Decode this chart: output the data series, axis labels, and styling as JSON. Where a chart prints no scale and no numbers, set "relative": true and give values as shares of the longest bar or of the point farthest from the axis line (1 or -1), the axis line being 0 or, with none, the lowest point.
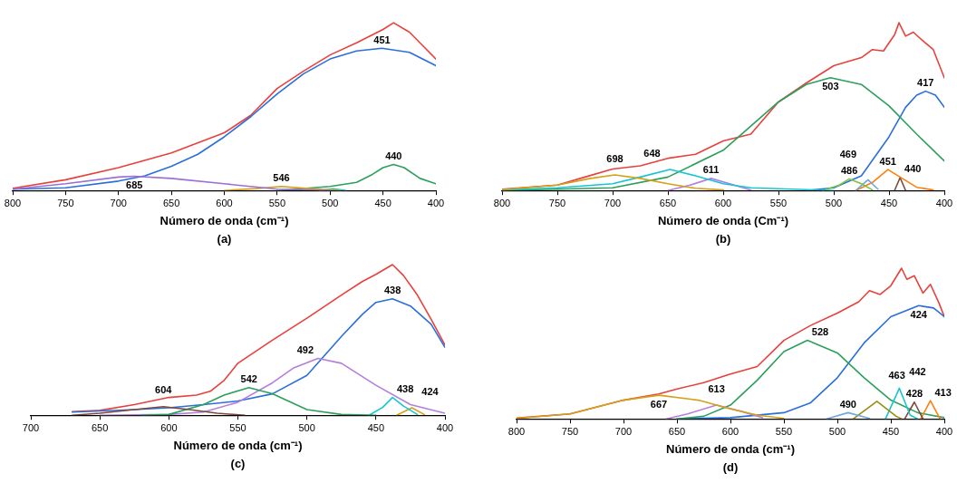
{
  "chart_data": [
    {
      "type": "line",
      "relative": true,
      "xlabel": "Número de onda (cm⁻¹)",
      "xlim": [
        800,
        400
      ],
      "xticks": [
        800,
        750,
        700,
        650,
        600,
        550,
        500,
        450,
        400
      ],
      "grid": false,
      "legend": false,
      "marker": "none",
      "line_style": "solid",
      "series": [
        {
          "color": "#9b6fd6",
          "x": [
            800,
            750,
            700,
            685,
            650,
            600,
            550,
            500
          ],
          "values": [
            0.008,
            0.04,
            0.08,
            0.085,
            0.072,
            0.04,
            0.008,
            0
          ]
        },
        {
          "color": "#d4a017",
          "x": [
            600,
            570,
            546,
            520,
            490
          ],
          "values": [
            0,
            0.011,
            0.024,
            0.011,
            0
          ]
        },
        {
          "color": "#17c5d0",
          "x": [
            510,
            497,
            485
          ],
          "values": [
            0,
            0.01,
            0
          ]
        },
        {
          "color": "#2ca05a",
          "x": [
            550,
            500,
            475,
            460,
            450,
            440,
            430,
            415,
            400
          ],
          "values": [
            0,
            0.024,
            0.048,
            0.096,
            0.136,
            0.155,
            0.136,
            0.072,
            0.04
          ]
        },
        {
          "color": "#2a6fdb",
          "x": [
            800,
            750,
            700,
            675,
            650,
            625,
            600,
            575,
            550,
            525,
            500,
            475,
            451,
            425,
            400
          ],
          "values": [
            0.008,
            0.016,
            0.056,
            0.088,
            0.144,
            0.216,
            0.32,
            0.44,
            0.576,
            0.696,
            0.784,
            0.832,
            0.848,
            0.824,
            0.744
          ]
        },
        {
          "color": "#e8413c",
          "x": [
            800,
            750,
            700,
            650,
            600,
            575,
            550,
            525,
            500,
            475,
            450,
            440,
            425,
            410,
            400
          ],
          "values": [
            0.013,
            0.064,
            0.136,
            0.224,
            0.344,
            0.448,
            0.608,
            0.712,
            0.808,
            0.88,
            0.96,
            1,
            0.944,
            0.848,
            0.784
          ]
        }
      ],
      "annotations": [
        {
          "text": "451",
          "x": 451,
          "y": 0.848
        },
        {
          "text": "685",
          "x": 685,
          "y": 0.085
        },
        {
          "text": "546",
          "x": 546,
          "y": 0.024
        },
        {
          "text": "440",
          "x": 440,
          "y": 0.155
        },
        "(a)"
      ]
    },
    {
      "type": "line",
      "relative": true,
      "xlabel": "Número de onda (Cm⁻¹)",
      "xlim": [
        800,
        400
      ],
      "xticks": [
        800,
        750,
        700,
        650,
        600,
        550,
        500,
        450,
        400
      ],
      "grid": false,
      "legend": false,
      "marker": "none",
      "line_style": "solid",
      "series": [
        {
          "color": "#d4a017",
          "x": [
            800,
            750,
            720,
            698,
            675,
            650,
            625,
            600
          ],
          "values": [
            0.005,
            0.032,
            0.072,
            0.093,
            0.072,
            0.04,
            0.013,
            0.003
          ]
        },
        {
          "color": "#17c5d0",
          "x": [
            800,
            750,
            700,
            675,
            648,
            625,
            600,
            575,
            525,
            500
          ],
          "values": [
            0.003,
            0.016,
            0.04,
            0.08,
            0.125,
            0.088,
            0.04,
            0.016,
            0.005,
            0
          ]
        },
        {
          "color": "#b57edc",
          "x": [
            650,
            630,
            611,
            590,
            575
          ],
          "values": [
            0,
            0.032,
            0.072,
            0.032,
            0.003
          ]
        },
        {
          "color": "#7cc242",
          "x": [
            510,
            495,
            486,
            475,
            465
          ],
          "values": [
            0,
            0.032,
            0.069,
            0.04,
            0.003
          ]
        },
        {
          "color": "#6fa8dc",
          "x": [
            480,
            469,
            460
          ],
          "values": [
            0,
            0.064,
            0.008
          ]
        },
        {
          "color": "#ff7f0e",
          "x": [
            480,
            465,
            451,
            440,
            425,
            410
          ],
          "values": [
            0,
            0.048,
            0.125,
            0.08,
            0.019,
            0.003
          ]
        },
        {
          "color": "#7b4a3a",
          "x": [
            445,
            440,
            435
          ],
          "values": [
            0,
            0.077,
            0
          ]
        },
        {
          "color": "#2ca05a",
          "x": [
            800,
            700,
            650,
            600,
            575,
            550,
            525,
            503,
            475,
            450,
            425,
            400
          ],
          "values": [
            0,
            0.016,
            0.08,
            0.24,
            0.384,
            0.528,
            0.632,
            0.672,
            0.632,
            0.504,
            0.336,
            0.176
          ]
        },
        {
          "color": "#2a6fdb",
          "x": [
            525,
            500,
            475,
            450,
            435,
            425,
            417,
            408,
            400
          ],
          "values": [
            0,
            0.016,
            0.088,
            0.32,
            0.496,
            0.568,
            0.592,
            0.568,
            0.496
          ]
        },
        {
          "color": "#e8413c",
          "x": [
            800,
            750,
            725,
            700,
            675,
            650,
            625,
            600,
            575,
            550,
            525,
            500,
            475,
            465,
            455,
            450,
            445,
            441,
            435,
            428,
            420,
            410,
            400
          ],
          "values": [
            0.008,
            0.032,
            0.08,
            0.128,
            0.147,
            0.192,
            0.216,
            0.296,
            0.336,
            0.528,
            0.64,
            0.744,
            0.792,
            0.84,
            0.832,
            0.88,
            0.928,
            1,
            0.92,
            0.944,
            0.896,
            0.84,
            0.672
          ]
        }
      ],
      "annotations": [
        {
          "text": "503",
          "x": 503,
          "y": 0.672
        },
        {
          "text": "417",
          "x": 417,
          "y": 0.592
        },
        {
          "text": "698",
          "x": 698,
          "y": 0.093
        },
        {
          "text": "648",
          "x": 648,
          "y": 0.125
        },
        {
          "text": "611",
          "x": 611,
          "y": 0.072
        },
        {
          "text": "486",
          "x": 486,
          "y": 0.069
        },
        {
          "text": "469",
          "x": 469,
          "y": 0.064
        },
        {
          "text": "451",
          "x": 451,
          "y": 0.125
        },
        {
          "text": "440",
          "x": 440,
          "y": 0.077
        },
        "(b)"
      ]
    },
    {
      "type": "line",
      "relative": true,
      "xlabel": "Número de onda (cm⁻¹)",
      "xlim": [
        700,
        400
      ],
      "xticks": [
        700,
        650,
        600,
        550,
        500,
        450,
        400
      ],
      "grid": false,
      "legend": false,
      "marker": "none",
      "line_style": "solid",
      "series": [
        {
          "color": "#7b4a3a",
          "x": [
            670,
            650,
            625,
            604,
            585,
            565,
            545
          ],
          "values": [
            0,
            0.013,
            0.037,
            0.057,
            0.037,
            0.013,
            0
          ]
        },
        {
          "color": "#2ca05a",
          "x": [
            620,
            600,
            575,
            560,
            542,
            525,
            500,
            475,
            450
          ],
          "values": [
            0,
            0.005,
            0.07,
            0.134,
            0.183,
            0.142,
            0.037,
            0.005,
            0
          ]
        },
        {
          "color": "#b57edc",
          "x": [
            650,
            600,
            575,
            550,
            525,
            510,
            492,
            475,
            450,
            425,
            400
          ],
          "values": [
            0,
            0.005,
            0.021,
            0.086,
            0.215,
            0.312,
            0.377,
            0.345,
            0.199,
            0.07,
            0.013
          ]
        },
        {
          "color": "#17c5d0",
          "x": [
            455,
            445,
            438,
            430,
            420
          ],
          "values": [
            0,
            0.053,
            0.118,
            0.061,
            0.005
          ]
        },
        {
          "color": "#d4a017",
          "x": [
            435,
            424,
            415
          ],
          "values": [
            0,
            0.049,
            0.005
          ]
        },
        {
          "color": "#2a6fdb",
          "x": [
            670,
            625,
            600,
            575,
            550,
            525,
            500,
            475,
            460,
            450,
            438,
            425,
            410,
            400
          ],
          "values": [
            0.021,
            0.037,
            0.049,
            0.07,
            0.094,
            0.142,
            0.264,
            0.523,
            0.668,
            0.749,
            0.773,
            0.725,
            0.604,
            0.45
          ]
        },
        {
          "color": "#e8413c",
          "x": [
            670,
            650,
            625,
            600,
            580,
            570,
            560,
            550,
            525,
            500,
            475,
            460,
            450,
            438,
            430,
            420,
            410,
            400
          ],
          "values": [
            0.024,
            0.032,
            0.07,
            0.118,
            0.134,
            0.159,
            0.231,
            0.345,
            0.498,
            0.644,
            0.798,
            0.887,
            0.935,
            1,
            0.927,
            0.798,
            0.636,
            0.466
          ]
        }
      ],
      "annotations": [
        {
          "text": "438",
          "x": 438,
          "y": 0.773
        },
        {
          "text": "492",
          "x": 492,
          "y": 0.377
        },
        {
          "text": "542",
          "x": 542,
          "y": 0.183
        },
        {
          "text": "604",
          "x": 604,
          "y": 0.057
        },
        {
          "text": "438",
          "x": 438,
          "y": 0.118
        },
        {
          "text": "424",
          "x": 424,
          "y": 0.049
        },
        "(c)"
      ]
    },
    {
      "type": "line",
      "relative": true,
      "xlabel": "Número de onda (cm⁻¹)",
      "xlim": [
        800,
        400
      ],
      "xticks": [
        800,
        750,
        700,
        650,
        600,
        550,
        500,
        450,
        400
      ],
      "grid": false,
      "legend": false,
      "marker": "none",
      "line_style": "solid",
      "series": [
        {
          "color": "#d4a017",
          "x": [
            800,
            750,
            700,
            667,
            630,
            600,
            575,
            550
          ],
          "values": [
            0.003,
            0.033,
            0.124,
            0.157,
            0.124,
            0.066,
            0.025,
            0.003
          ]
        },
        {
          "color": "#b57edc",
          "x": [
            660,
            640,
            613,
            590,
            570
          ],
          "values": [
            0,
            0.033,
            0.091,
            0.05,
            0.008
          ]
        },
        {
          "color": "#6fa8dc",
          "x": [
            510,
            490,
            470
          ],
          "values": [
            0,
            0.041,
            0.003
          ]
        },
        {
          "color": "#9a8c10",
          "x": [
            485,
            463,
            445,
            440
          ],
          "values": [
            0,
            0.116,
            0.017,
            0
          ]
        },
        {
          "color": "#17c5d0",
          "x": [
            455,
            442,
            432,
            425
          ],
          "values": [
            0,
            0.203,
            0.025,
            0
          ]
        },
        {
          "color": "#7b4a3a",
          "x": [
            437,
            428,
            420
          ],
          "values": [
            0,
            0.111,
            0
          ]
        },
        {
          "color": "#ff7f0e",
          "x": [
            422,
            413,
            404
          ],
          "values": [
            0,
            0.121,
            0
          ]
        },
        {
          "color": "#2ca05a",
          "x": [
            650,
            625,
            600,
            575,
            550,
            528,
            500,
            475,
            450,
            425,
            400
          ],
          "values": [
            0,
            0.017,
            0.091,
            0.256,
            0.446,
            0.521,
            0.438,
            0.273,
            0.124,
            0.041,
            0.008
          ]
        },
        {
          "color": "#2a6fdb",
          "x": [
            650,
            600,
            550,
            525,
            500,
            475,
            450,
            424,
            410,
            400
          ],
          "values": [
            0,
            0.008,
            0.041,
            0.107,
            0.273,
            0.504,
            0.678,
            0.752,
            0.736,
            0.678
          ]
        },
        {
          "color": "#e8413c",
          "x": [
            800,
            750,
            700,
            667,
            650,
            625,
            600,
            575,
            550,
            525,
            500,
            480,
            470,
            460,
            450,
            440,
            435,
            428,
            420,
            413,
            405,
            400
          ],
          "values": [
            0.005,
            0.033,
            0.124,
            0.165,
            0.198,
            0.24,
            0.298,
            0.347,
            0.521,
            0.62,
            0.702,
            0.777,
            0.851,
            0.826,
            0.884,
            1,
            0.926,
            0.95,
            0.835,
            0.893,
            0.769,
            0.678
          ]
        }
      ],
      "annotations": [
        {
          "text": "424",
          "x": 424,
          "y": 0.752
        },
        {
          "text": "528",
          "x": 528,
          "y": 0.521
        },
        {
          "text": "667",
          "x": 667,
          "y": 0.157
        },
        {
          "text": "613",
          "x": 613,
          "y": 0.091
        },
        {
          "text": "490",
          "x": 490,
          "y": 0.041
        },
        {
          "text": "463",
          "x": 463,
          "y": 0.116
        },
        {
          "text": "442",
          "x": 442,
          "y": 0.203
        },
        {
          "text": "428",
          "x": 428,
          "y": 0.111
        },
        {
          "text": "413",
          "x": 413,
          "y": 0.121
        },
        "(d)"
      ]
    }
  ]
}
